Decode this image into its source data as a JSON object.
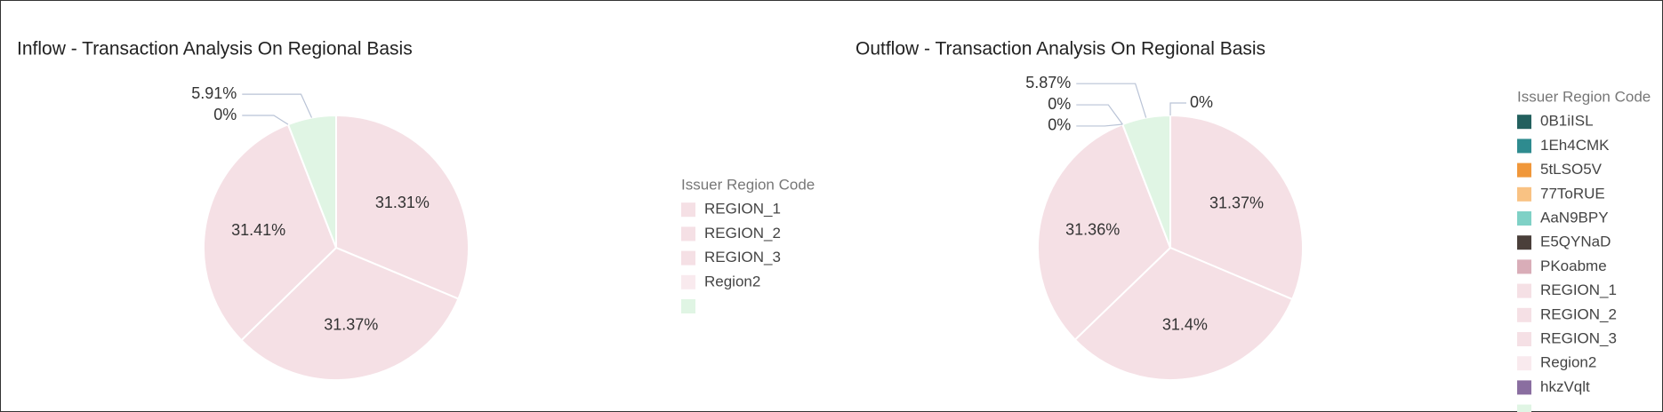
{
  "chart_data": [
    {
      "type": "pie",
      "title": "Inflow - Transaction Analysis On Regional Basis",
      "legend_title": "Issuer Region Code",
      "categories": [
        "REGION_1",
        "REGION_2",
        "REGION_3",
        "Region2",
        null
      ],
      "values": [
        31.31,
        31.37,
        31.41,
        0,
        5.91
      ],
      "value_labels": [
        "31.31%",
        "31.37%",
        "31.41%",
        "0%",
        "5.91%"
      ],
      "colors": [
        "#f5e0e5",
        "#f5e0e5",
        "#f5e0e5",
        "#f9eaee",
        "#e0f5e4"
      ]
    },
    {
      "type": "pie",
      "title": "Outflow - Transaction Analysis On Regional Basis",
      "legend_title": "Issuer Region Code",
      "categories": [
        "0B1iISL",
        "1Eh4CMK",
        "5tLSO5V",
        "77ToRUE",
        "AaN9BPY",
        "E5QYNaD",
        "PKoabme",
        "REGION_1",
        "REGION_2",
        "REGION_3",
        "Region2",
        "hkzVqlt",
        null
      ],
      "values": [
        0,
        null,
        null,
        null,
        null,
        null,
        null,
        31.37,
        31.4,
        31.36,
        0,
        0,
        5.87
      ],
      "value_labels": [
        "0%",
        null,
        null,
        null,
        null,
        null,
        null,
        "31.37%",
        "31.4%",
        "31.36%",
        "0%",
        "0%",
        "5.87%"
      ],
      "colors": [
        "#23605e",
        "#2e8b8f",
        "#f0973a",
        "#f9c283",
        "#7fd1c6",
        "#4a3f3a",
        "#d9adb8",
        "#f5e0e5",
        "#f5e0e5",
        "#f5e0e5",
        "#f9eaee",
        "#8a6ea0",
        "#e0f5e4"
      ]
    }
  ]
}
